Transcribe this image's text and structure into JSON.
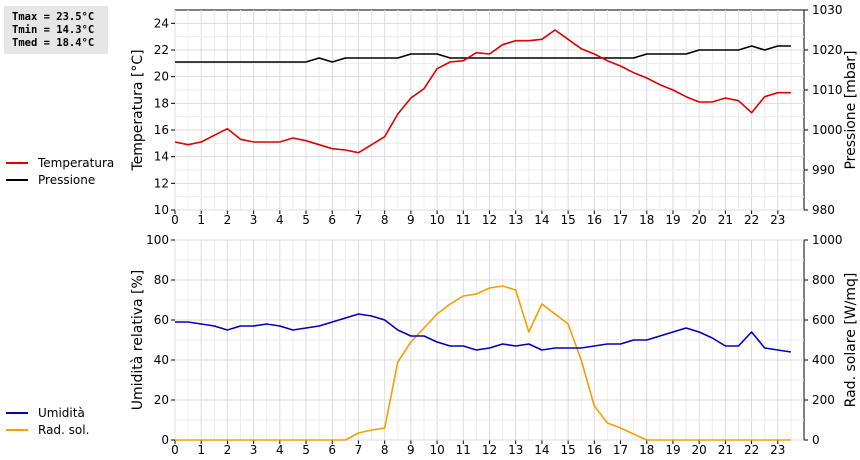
{
  "stats": {
    "tmax": "Tmax = 23.5°C",
    "tmin": "Tmin = 14.3°C",
    "tmed": "Tmed = 18.4°C"
  },
  "chart_data": [
    {
      "type": "line",
      "ylabel_left": "Temperatura [°C]",
      "ylabel_right": "Pressione [mbar]",
      "xlim": [
        0,
        24
      ],
      "ylim_left": [
        10,
        25
      ],
      "ylim_right": [
        980,
        1030
      ],
      "x_ticks": [
        "0",
        "1",
        "2",
        "3",
        "4",
        "5",
        "6",
        "7",
        "8",
        "9",
        "10",
        "11",
        "12",
        "13",
        "14",
        "15",
        "16",
        "17",
        "18",
        "19",
        "20",
        "21",
        "22",
        "23"
      ],
      "y_ticks_left": [
        "10",
        "12",
        "14",
        "16",
        "18",
        "20",
        "22",
        "24"
      ],
      "y_ticks_right": [
        "980",
        "990",
        "1000",
        "1010",
        "1020",
        "1030"
      ],
      "grid": true,
      "legend_position": "left",
      "series": [
        {
          "name": "Temperatura",
          "axis": "left",
          "color": "#dd0000",
          "x": [
            0,
            0.5,
            1,
            1.5,
            2,
            2.5,
            3,
            3.5,
            4,
            4.5,
            5,
            5.5,
            6,
            6.5,
            7,
            7.5,
            8,
            8.5,
            9,
            9.5,
            10,
            10.5,
            11,
            11.5,
            12,
            12.5,
            13,
            13.5,
            14,
            14.5,
            15,
            15.5,
            16,
            16.5,
            17,
            17.5,
            18,
            18.5,
            19,
            19.5,
            20,
            20.5,
            21,
            21.5,
            22,
            22.5,
            23,
            23.5
          ],
          "y": [
            15.1,
            14.9,
            15.1,
            15.6,
            16.1,
            15.3,
            15.1,
            15.1,
            15.1,
            15.4,
            15.2,
            14.9,
            14.6,
            14.5,
            14.3,
            14.9,
            15.5,
            17.2,
            18.4,
            19.1,
            20.6,
            21.1,
            21.2,
            21.8,
            21.7,
            22.4,
            22.7,
            22.7,
            22.8,
            23.5,
            22.8,
            22.1,
            21.7,
            21.2,
            20.8,
            20.3,
            19.9,
            19.4,
            19.0,
            18.5,
            18.1,
            18.1,
            18.4,
            18.2,
            17.3,
            18.5,
            18.8,
            18.8
          ]
        },
        {
          "name": "Pressione",
          "axis": "right",
          "color": "#000000",
          "x": [
            0,
            0.5,
            1,
            1.5,
            2,
            2.5,
            3,
            3.5,
            4,
            4.5,
            5,
            5.5,
            6,
            6.5,
            7,
            7.5,
            8,
            8.5,
            9,
            9.5,
            10,
            10.5,
            11,
            11.5,
            12,
            12.5,
            13,
            13.5,
            14,
            14.5,
            15,
            15.5,
            16,
            16.5,
            17,
            17.5,
            18,
            18.5,
            19,
            19.5,
            20,
            20.5,
            21,
            21.5,
            22,
            22.5,
            23,
            23.5
          ],
          "y": [
            1017,
            1017,
            1017,
            1017,
            1017,
            1017,
            1017,
            1017,
            1017,
            1017,
            1017,
            1018,
            1017,
            1018,
            1018,
            1018,
            1018,
            1018,
            1019,
            1019,
            1019,
            1018,
            1018,
            1018,
            1018,
            1018,
            1018,
            1018,
            1018,
            1018,
            1018,
            1018,
            1018,
            1018,
            1018,
            1018,
            1019,
            1019,
            1019,
            1019,
            1020,
            1020,
            1020,
            1020,
            1021,
            1020,
            1021,
            1021
          ]
        }
      ]
    },
    {
      "type": "line",
      "ylabel_left": "Umidità relativa [%]",
      "ylabel_right": "Rad. solare [W/mq]",
      "xlim": [
        0,
        24
      ],
      "ylim_left": [
        0,
        100
      ],
      "ylim_right": [
        0,
        1000
      ],
      "x_ticks": [
        "0",
        "1",
        "2",
        "3",
        "4",
        "5",
        "6",
        "7",
        "8",
        "9",
        "10",
        "11",
        "12",
        "13",
        "14",
        "15",
        "16",
        "17",
        "18",
        "19",
        "20",
        "21",
        "22",
        "23"
      ],
      "y_ticks_left": [
        "0",
        "20",
        "40",
        "60",
        "80",
        "100"
      ],
      "y_ticks_right": [
        "0",
        "200",
        "400",
        "600",
        "800",
        "1000"
      ],
      "grid": true,
      "legend_position": "left",
      "series": [
        {
          "name": "Umidità",
          "axis": "left",
          "color": "#0000bb",
          "x": [
            0,
            0.5,
            1,
            1.5,
            2,
            2.5,
            3,
            3.5,
            4,
            4.5,
            5,
            5.5,
            6,
            6.5,
            7,
            7.5,
            8,
            8.5,
            9,
            9.5,
            10,
            10.5,
            11,
            11.5,
            12,
            12.5,
            13,
            13.5,
            14,
            14.5,
            15,
            15.5,
            16,
            16.5,
            17,
            17.5,
            18,
            18.5,
            19,
            19.5,
            20,
            20.5,
            21,
            21.5,
            22,
            22.5,
            23,
            23.5
          ],
          "y": [
            59,
            59,
            58,
            57,
            55,
            57,
            57,
            58,
            57,
            55,
            56,
            57,
            59,
            61,
            63,
            62,
            60,
            55,
            52,
            52,
            49,
            47,
            47,
            45,
            46,
            48,
            47,
            48,
            45,
            46,
            46,
            46,
            47,
            48,
            48,
            50,
            50,
            52,
            54,
            56,
            54,
            51,
            47,
            47,
            54,
            46,
            45,
            44
          ]
        },
        {
          "name": "Rad. sol.",
          "axis": "right",
          "color": "#f0a000",
          "x": [
            0,
            0.5,
            1,
            1.5,
            2,
            2.5,
            3,
            3.5,
            4,
            4.5,
            5,
            5.5,
            6,
            6.5,
            7,
            7.5,
            8,
            8.5,
            9,
            9.5,
            10,
            10.5,
            11,
            11.5,
            12,
            12.5,
            13,
            13.5,
            14,
            14.5,
            15,
            15.5,
            16,
            16.5,
            17,
            17.5,
            18,
            18.5,
            19,
            19.5,
            20,
            20.5,
            21,
            21.5,
            22,
            22.5,
            23,
            23.5
          ],
          "y": [
            0,
            0,
            0,
            0,
            0,
            0,
            0,
            0,
            0,
            0,
            0,
            0,
            0,
            0,
            35,
            50,
            60,
            390,
            490,
            560,
            630,
            680,
            720,
            730,
            760,
            770,
            750,
            540,
            680,
            630,
            580,
            400,
            170,
            85,
            60,
            30,
            0,
            0,
            0,
            0,
            0,
            0,
            0,
            0,
            0,
            0,
            0,
            0
          ]
        }
      ]
    }
  ]
}
